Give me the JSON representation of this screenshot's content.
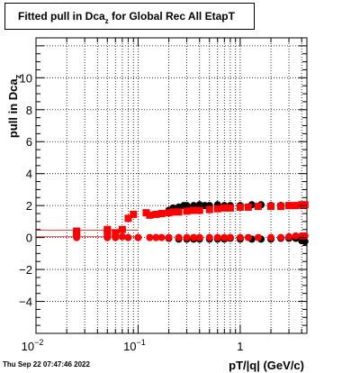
{
  "title": {
    "prefix": "Fitted pull in Dca",
    "sub": "z",
    "suffix": " for Global Rec All EtapT"
  },
  "date_stamp": "Thu Sep 22 07:47:46 2022",
  "chart_data": {
    "type": "scatter",
    "xlabel": "pT/|q| (GeV/c)",
    "ylabel_main": "pull in Dca",
    "ylabel_sub": "z",
    "x_scale": "log",
    "xlim": [
      0.01,
      4.5
    ],
    "ylim": [
      -6,
      12.5
    ],
    "grid": true,
    "x_ticks": [
      {
        "value": 0.01,
        "base": "10",
        "exp": "−2"
      },
      {
        "value": 0.1,
        "base": "10",
        "exp": "−1"
      },
      {
        "value": 1,
        "base": "1",
        "exp": ""
      }
    ],
    "y_ticks": [
      "−4",
      "−2",
      "0",
      "2",
      "4",
      "6",
      "8",
      "10"
    ],
    "y_tick_values": [
      -4,
      -2,
      0,
      2,
      4,
      6,
      8,
      10
    ],
    "colors": {
      "series_black": "#000000",
      "series_red": "#ff0000"
    },
    "series": [
      {
        "marker": "square",
        "color": "#ff0000",
        "x": [
          0.025,
          0.025,
          0.05,
          0.05,
          0.06,
          0.07,
          0.08,
          0.09,
          0.12,
          0.13,
          0.15,
          0.17,
          0.2,
          0.22,
          0.25,
          0.3,
          0.35,
          0.4,
          0.5,
          0.6,
          0.7,
          0.8,
          1.0,
          1.2,
          1.5,
          2.0,
          2.5,
          3.0,
          3.5,
          4.0,
          4.3
        ],
        "y": [
          0.2,
          0.4,
          0.3,
          0.5,
          0.3,
          0.5,
          1.2,
          1.45,
          1.55,
          1.4,
          1.45,
          1.5,
          1.55,
          1.6,
          1.6,
          1.65,
          1.7,
          1.7,
          1.75,
          1.8,
          1.85,
          1.85,
          1.9,
          1.9,
          1.95,
          1.95,
          1.95,
          2.0,
          2.0,
          2.05,
          2.05
        ]
      },
      {
        "marker": "circle",
        "color": "#ff0000",
        "x": [
          0.025,
          0.025,
          0.05,
          0.05,
          0.06,
          0.07,
          0.08,
          0.1,
          0.13,
          0.15,
          0.17,
          0.2,
          0.25,
          0.3,
          0.35,
          0.4,
          0.5,
          0.6,
          0.7,
          0.8,
          1.0,
          1.2,
          1.5,
          2.0,
          2.5,
          3.0,
          3.5,
          4.0,
          4.3
        ],
        "y": [
          0.0,
          0.1,
          0.0,
          0.05,
          0.0,
          0.05,
          0.0,
          0.0,
          0.0,
          0.0,
          0.0,
          0.0,
          0.0,
          0.0,
          0.0,
          0.0,
          0.0,
          0.0,
          0.0,
          0.0,
          0.0,
          0.0,
          0.0,
          0.0,
          0.0,
          0.05,
          0.1,
          0.1,
          0.1
        ]
      },
      {
        "marker": "circle",
        "color": "#000000",
        "x": [
          0.2,
          0.22,
          0.25,
          0.28,
          0.3,
          0.35,
          0.4,
          0.45,
          0.5,
          0.6,
          0.7,
          0.8,
          1.0,
          1.3,
          1.6,
          2.0,
          2.5,
          3.0,
          3.5,
          4.0,
          4.3
        ],
        "y": [
          1.7,
          1.85,
          1.9,
          2.0,
          2.0,
          2.0,
          2.05,
          2.0,
          2.0,
          2.05,
          2.0,
          2.0,
          2.0,
          2.05,
          2.05,
          2.0,
          2.0,
          2.0,
          2.0,
          2.0,
          2.0
        ]
      },
      {
        "marker": "circle",
        "color": "#000000",
        "x": [
          0.2,
          0.25,
          0.3,
          0.35,
          0.4,
          0.5,
          0.6,
          0.7,
          0.8,
          1.0,
          1.3,
          1.6,
          2.0,
          2.5,
          3.0,
          3.5,
          4.0,
          4.3
        ],
        "y": [
          -0.05,
          -0.1,
          -0.1,
          -0.1,
          -0.1,
          -0.1,
          -0.1,
          -0.1,
          -0.05,
          -0.1,
          -0.1,
          -0.1,
          -0.1,
          -0.05,
          -0.05,
          -0.05,
          -0.2,
          -0.25
        ]
      }
    ],
    "fit_lines": [
      {
        "color": "#ff0000",
        "x": [
          0.01,
          0.1
        ],
        "y": [
          0.45,
          0.45
        ]
      },
      {
        "color": "#ff0000",
        "x": [
          0.01,
          0.1
        ],
        "y": [
          0.05,
          0.05
        ]
      }
    ]
  }
}
